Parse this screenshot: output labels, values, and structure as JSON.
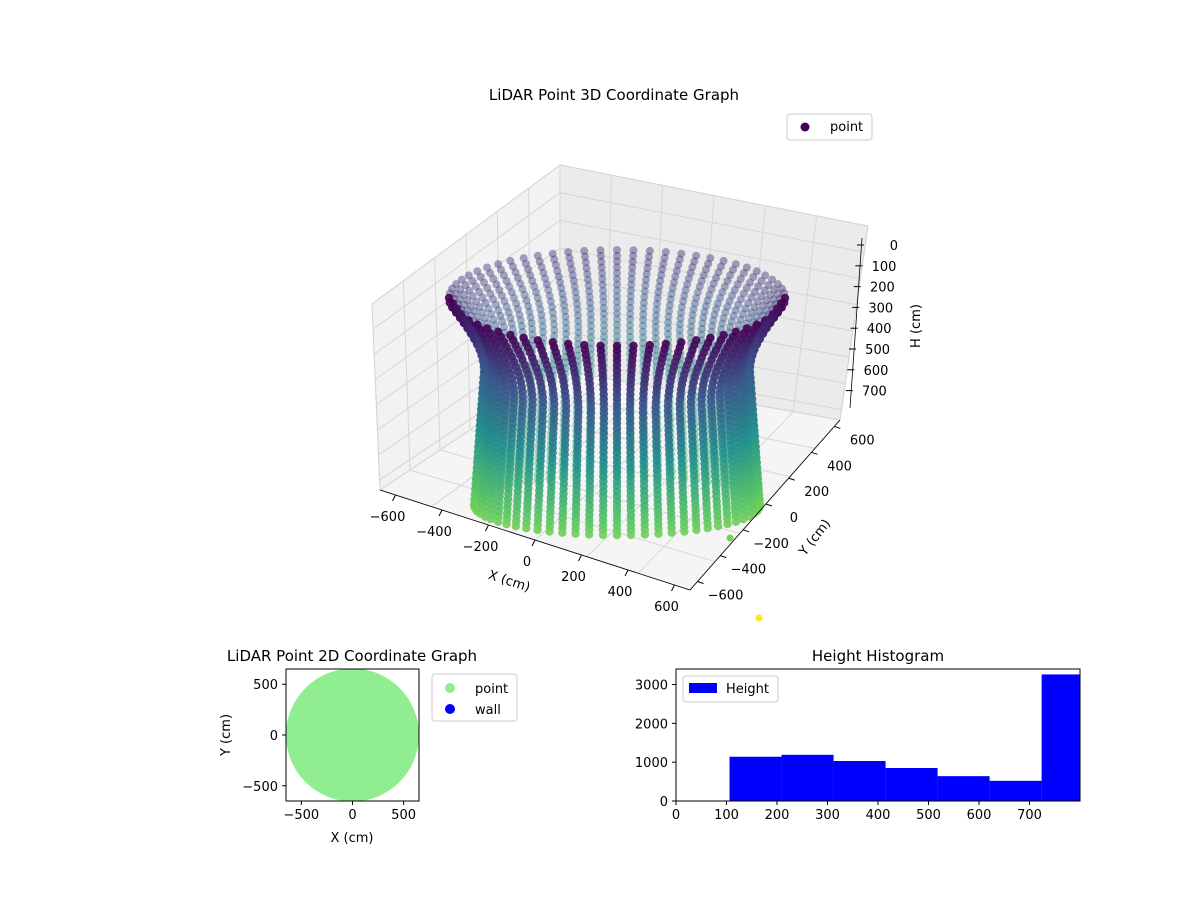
{
  "colors": {
    "point_2d": "#90ee90",
    "wall_2d": "#0000ff",
    "hist_bar": "#0000ff",
    "viridis_low": "#440154",
    "viridis_mid": "#21918c",
    "viridis_high": "#fde725"
  },
  "chart_data": [
    {
      "id": "lidar-3d",
      "type": "scatter",
      "title": "LiDAR Point 3D Coordinate Graph",
      "xlabel": "X (cm)",
      "ylabel": "Y (cm)",
      "zlabel": "H (cm)",
      "xlim": [
        -650,
        650
      ],
      "ylim": [
        -650,
        650
      ],
      "zlim": [
        0,
        800
      ],
      "z_inverted": true,
      "xticks": [
        "−600",
        "−400",
        "−200",
        "0",
        "200",
        "400",
        "600"
      ],
      "yticks": [
        "−600",
        "−400",
        "−200",
        "0",
        "200",
        "400",
        "600"
      ],
      "zticks": [
        "0",
        "100",
        "200",
        "300",
        "400",
        "500",
        "600",
        "700"
      ],
      "legend": {
        "position": "top-right",
        "entries": [
          "point"
        ]
      },
      "series": [
        {
          "name": "point",
          "shape": "cylinder",
          "radius_cm": 580,
          "height_range_cm": [
            0,
            780
          ],
          "colormap": "viridis",
          "outliers": [
            {
              "x": 560,
              "y": -420,
              "h": 780
            },
            {
              "x": 620,
              "y": -600,
              "h": 800
            }
          ]
        }
      ],
      "grid": true
    },
    {
      "id": "lidar-2d",
      "type": "scatter",
      "title": "LiDAR Point 2D Coordinate Graph",
      "xlabel": "X (cm)",
      "ylabel": "Y (cm)",
      "xlim": [
        -650,
        650
      ],
      "ylim": [
        -650,
        650
      ],
      "xticks": [
        -500,
        0,
        500
      ],
      "yticks": [
        -500,
        0,
        500
      ],
      "legend": {
        "position": "outside-right",
        "entries": [
          "point",
          "wall"
        ]
      },
      "series": [
        {
          "name": "point",
          "color": "#90ee90",
          "shape": "disc",
          "radius_cm": 650
        },
        {
          "name": "wall",
          "color": "#0000ff"
        }
      ]
    },
    {
      "id": "height-hist",
      "type": "bar",
      "title": "Height Histogram",
      "xlim": [
        0,
        800
      ],
      "ylim": [
        0,
        3400
      ],
      "xticks": [
        0,
        100,
        200,
        300,
        400,
        500,
        600,
        700
      ],
      "yticks": [
        0,
        1000,
        2000,
        3000
      ],
      "legend": {
        "position": "top-left",
        "entries": [
          "Height"
        ]
      },
      "series": [
        {
          "name": "Height",
          "color": "#0000ff",
          "bins": [
            {
              "x0": 0,
              "x1": 106,
              "value": 0
            },
            {
              "x0": 106,
              "x1": 209,
              "value": 1140
            },
            {
              "x0": 209,
              "x1": 312,
              "value": 1190
            },
            {
              "x0": 312,
              "x1": 415,
              "value": 1030
            },
            {
              "x0": 415,
              "x1": 518,
              "value": 850
            },
            {
              "x0": 518,
              "x1": 621,
              "value": 640
            },
            {
              "x0": 621,
              "x1": 724,
              "value": 520
            },
            {
              "x0": 724,
              "x1": 800,
              "value": 3260
            }
          ]
        }
      ]
    }
  ]
}
